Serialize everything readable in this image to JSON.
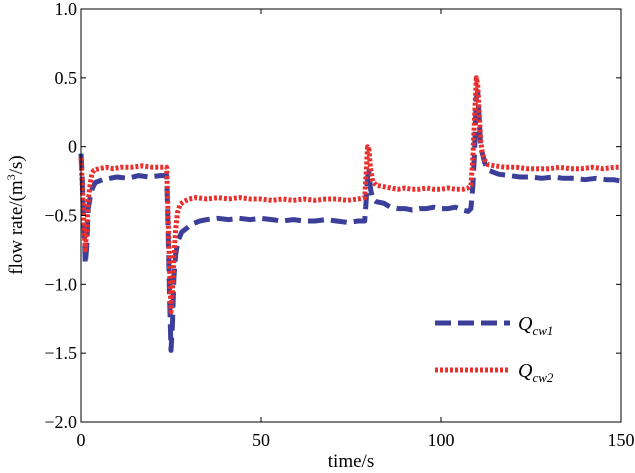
{
  "chart_data": {
    "type": "line",
    "title": "",
    "xlabel": "time/s",
    "ylabel_main": "flow rate/(m",
    "ylabel_sup": "3",
    "ylabel_end": "/s)",
    "xlim": [
      0,
      150
    ],
    "ylim": [
      -2.0,
      1.0
    ],
    "xticks": [
      0,
      50,
      100,
      150
    ],
    "xtick_labels": [
      "0",
      "50",
      "100",
      "150"
    ],
    "yticks": [
      -2.0,
      -1.5,
      -1.0,
      -0.5,
      0,
      0.5,
      1.0
    ],
    "ytick_labels": [
      "−2.0",
      "−1.5",
      "−1.0",
      "−0.5",
      "0",
      "0.5",
      "1.0"
    ],
    "grid": false,
    "legend_position": "bottom-right",
    "series": [
      {
        "name_base": "Q",
        "name_sub": "cw1",
        "color": "#3b3f99",
        "style": "dashed",
        "points": [
          [
            0,
            -0.05
          ],
          [
            0.3,
            -0.2
          ],
          [
            0.6,
            -0.45
          ],
          [
            0.9,
            -0.6
          ],
          [
            1.2,
            -0.85
          ],
          [
            1.6,
            -0.72
          ],
          [
            2.0,
            -0.45
          ],
          [
            2.6,
            -0.36
          ],
          [
            3.2,
            -0.3
          ],
          [
            4,
            -0.26
          ],
          [
            6,
            -0.24
          ],
          [
            8,
            -0.23
          ],
          [
            10,
            -0.22
          ],
          [
            13,
            -0.23
          ],
          [
            16,
            -0.21
          ],
          [
            19,
            -0.22
          ],
          [
            22,
            -0.21
          ],
          [
            23.8,
            -0.21
          ],
          [
            24.2,
            -0.6
          ],
          [
            24.6,
            -1.1
          ],
          [
            25.0,
            -1.48
          ],
          [
            25.4,
            -1.3
          ],
          [
            25.8,
            -0.95
          ],
          [
            26.3,
            -0.78
          ],
          [
            27,
            -0.68
          ],
          [
            28,
            -0.62
          ],
          [
            29,
            -0.6
          ],
          [
            30,
            -0.58
          ],
          [
            31,
            -0.56
          ],
          [
            33,
            -0.54
          ],
          [
            35,
            -0.53
          ],
          [
            38,
            -0.52
          ],
          [
            41,
            -0.53
          ],
          [
            44,
            -0.52
          ],
          [
            47,
            -0.53
          ],
          [
            50,
            -0.52
          ],
          [
            53,
            -0.53
          ],
          [
            56,
            -0.54
          ],
          [
            59,
            -0.53
          ],
          [
            62,
            -0.54
          ],
          [
            65,
            -0.54
          ],
          [
            68,
            -0.53
          ],
          [
            71,
            -0.54
          ],
          [
            74,
            -0.55
          ],
          [
            77,
            -0.54
          ],
          [
            78.8,
            -0.54
          ],
          [
            79.2,
            -0.4
          ],
          [
            79.6,
            -0.22
          ],
          [
            80.0,
            -0.18
          ],
          [
            80.4,
            -0.3
          ],
          [
            81,
            -0.38
          ],
          [
            82,
            -0.4
          ],
          [
            84,
            -0.41
          ],
          [
            86,
            -0.44
          ],
          [
            88,
            -0.45
          ],
          [
            90,
            -0.45
          ],
          [
            92,
            -0.46
          ],
          [
            94,
            -0.45
          ],
          [
            96,
            -0.45
          ],
          [
            98,
            -0.44
          ],
          [
            100,
            -0.45
          ],
          [
            102,
            -0.45
          ],
          [
            104,
            -0.44
          ],
          [
            106,
            -0.46
          ],
          [
            107.5,
            -0.47
          ],
          [
            108.3,
            -0.45
          ],
          [
            108.8,
            -0.3
          ],
          [
            109.3,
            -0.05
          ],
          [
            109.8,
            0.35
          ],
          [
            110.2,
            0.4
          ],
          [
            110.6,
            0.2
          ],
          [
            111,
            0.0
          ],
          [
            111.5,
            -0.05
          ],
          [
            112.2,
            -0.12
          ],
          [
            113,
            -0.17
          ],
          [
            114,
            -0.18
          ],
          [
            116,
            -0.2
          ],
          [
            119,
            -0.21
          ],
          [
            122,
            -0.22
          ],
          [
            125,
            -0.22
          ],
          [
            128,
            -0.23
          ],
          [
            131,
            -0.22
          ],
          [
            134,
            -0.23
          ],
          [
            137,
            -0.23
          ],
          [
            140,
            -0.24
          ],
          [
            143,
            -0.23
          ],
          [
            146,
            -0.24
          ],
          [
            148,
            -0.24
          ],
          [
            150,
            -0.25
          ]
        ]
      },
      {
        "name_base": "Q",
        "name_sub": "cw2",
        "color": "#e8312f",
        "style": "dotted",
        "points": [
          [
            0,
            -0.08
          ],
          [
            0.3,
            -0.25
          ],
          [
            0.6,
            -0.45
          ],
          [
            0.9,
            -0.6
          ],
          [
            1.2,
            -0.75
          ],
          [
            1.6,
            -0.6
          ],
          [
            2.0,
            -0.4
          ],
          [
            2.5,
            -0.28
          ],
          [
            3.0,
            -0.2
          ],
          [
            3.6,
            -0.17
          ],
          [
            5,
            -0.16
          ],
          [
            7,
            -0.15
          ],
          [
            9,
            -0.16
          ],
          [
            11,
            -0.15
          ],
          [
            14,
            -0.15
          ],
          [
            17,
            -0.14
          ],
          [
            20,
            -0.15
          ],
          [
            23,
            -0.15
          ],
          [
            23.8,
            -0.15
          ],
          [
            24.2,
            -0.5
          ],
          [
            24.6,
            -0.9
          ],
          [
            25.0,
            -1.2
          ],
          [
            25.4,
            -1.05
          ],
          [
            25.8,
            -0.8
          ],
          [
            26.3,
            -0.6
          ],
          [
            26.8,
            -0.48
          ],
          [
            27.5,
            -0.42
          ],
          [
            28.5,
            -0.4
          ],
          [
            30,
            -0.38
          ],
          [
            32,
            -0.37
          ],
          [
            35,
            -0.38
          ],
          [
            38,
            -0.37
          ],
          [
            41,
            -0.38
          ],
          [
            44,
            -0.37
          ],
          [
            47,
            -0.38
          ],
          [
            50,
            -0.38
          ],
          [
            53,
            -0.39
          ],
          [
            56,
            -0.38
          ],
          [
            59,
            -0.39
          ],
          [
            62,
            -0.38
          ],
          [
            65,
            -0.39
          ],
          [
            68,
            -0.38
          ],
          [
            71,
            -0.38
          ],
          [
            74,
            -0.39
          ],
          [
            77,
            -0.38
          ],
          [
            78.8,
            -0.37
          ],
          [
            79.2,
            -0.2
          ],
          [
            79.6,
            0.0
          ],
          [
            80.0,
            -0.02
          ],
          [
            80.4,
            -0.15
          ],
          [
            81,
            -0.25
          ],
          [
            82,
            -0.28
          ],
          [
            84,
            -0.29
          ],
          [
            86,
            -0.3
          ],
          [
            88,
            -0.31
          ],
          [
            90,
            -0.3
          ],
          [
            92,
            -0.31
          ],
          [
            94,
            -0.31
          ],
          [
            96,
            -0.3
          ],
          [
            98,
            -0.31
          ],
          [
            100,
            -0.31
          ],
          [
            102,
            -0.3
          ],
          [
            104,
            -0.31
          ],
          [
            106,
            -0.31
          ],
          [
            107.5,
            -0.3
          ],
          [
            108.3,
            -0.28
          ],
          [
            108.8,
            -0.1
          ],
          [
            109.3,
            0.2
          ],
          [
            109.8,
            0.5
          ],
          [
            110.2,
            0.45
          ],
          [
            110.6,
            0.25
          ],
          [
            111,
            0.05
          ],
          [
            111.5,
            -0.05
          ],
          [
            112.2,
            -0.1
          ],
          [
            113,
            -0.13
          ],
          [
            115,
            -0.14
          ],
          [
            118,
            -0.15
          ],
          [
            121,
            -0.15
          ],
          [
            124,
            -0.16
          ],
          [
            127,
            -0.16
          ],
          [
            130,
            -0.16
          ],
          [
            133,
            -0.15
          ],
          [
            136,
            -0.16
          ],
          [
            139,
            -0.16
          ],
          [
            142,
            -0.15
          ],
          [
            145,
            -0.16
          ],
          [
            148,
            -0.15
          ],
          [
            150,
            -0.15
          ]
        ]
      }
    ]
  }
}
